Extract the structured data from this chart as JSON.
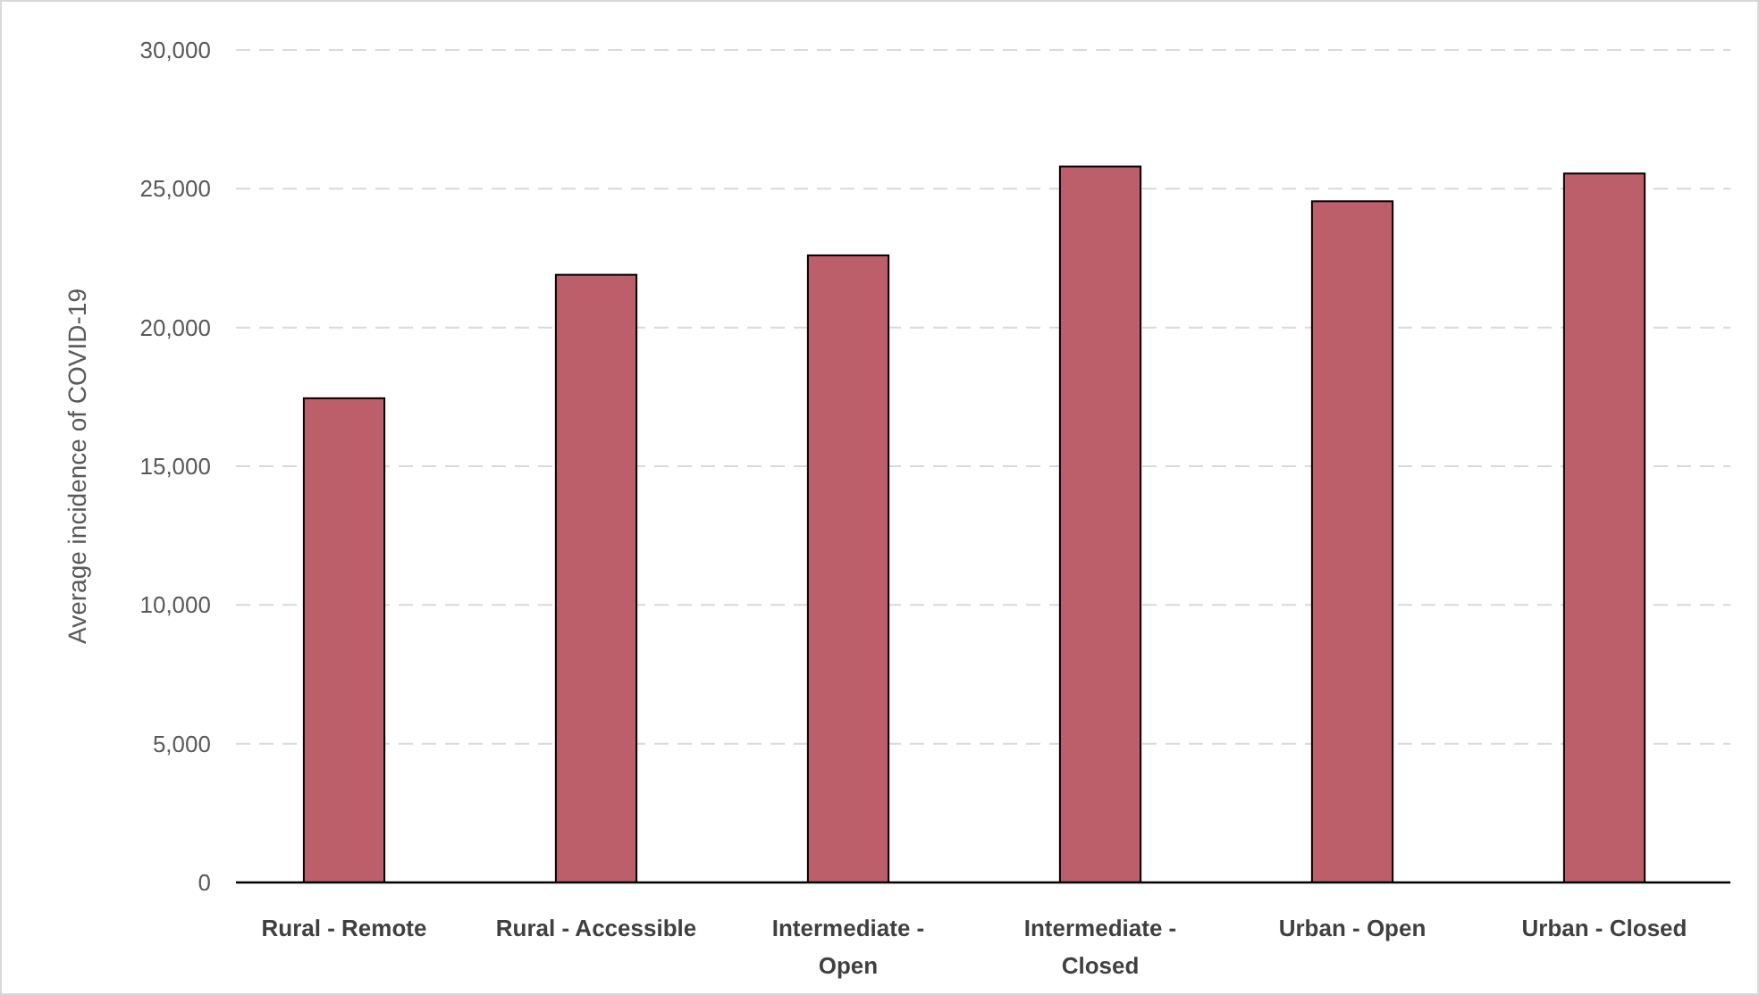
{
  "chart_data": {
    "type": "bar",
    "ylabel": "Average incidence of COVID-19",
    "categories": [
      "Rural - Remote",
      "Rural - Accessible",
      "Intermediate - Open",
      "Intermediate - Closed",
      "Urban - Open",
      "Urban - Closed"
    ],
    "values": [
      17450,
      21900,
      22600,
      25800,
      24550,
      25550
    ],
    "color": "#bc5f6a",
    "ylim": [
      0,
      30000
    ],
    "yticks": [
      {
        "value": 0,
        "label": "0"
      },
      {
        "value": 5000,
        "label": "5,000"
      },
      {
        "value": 10000,
        "label": "10,000"
      },
      {
        "value": 15000,
        "label": "15,000"
      },
      {
        "value": 20000,
        "label": "20,000"
      },
      {
        "value": 25000,
        "label": "25,000"
      },
      {
        "value": 30000,
        "label": "30,000"
      }
    ],
    "grid": "y"
  }
}
